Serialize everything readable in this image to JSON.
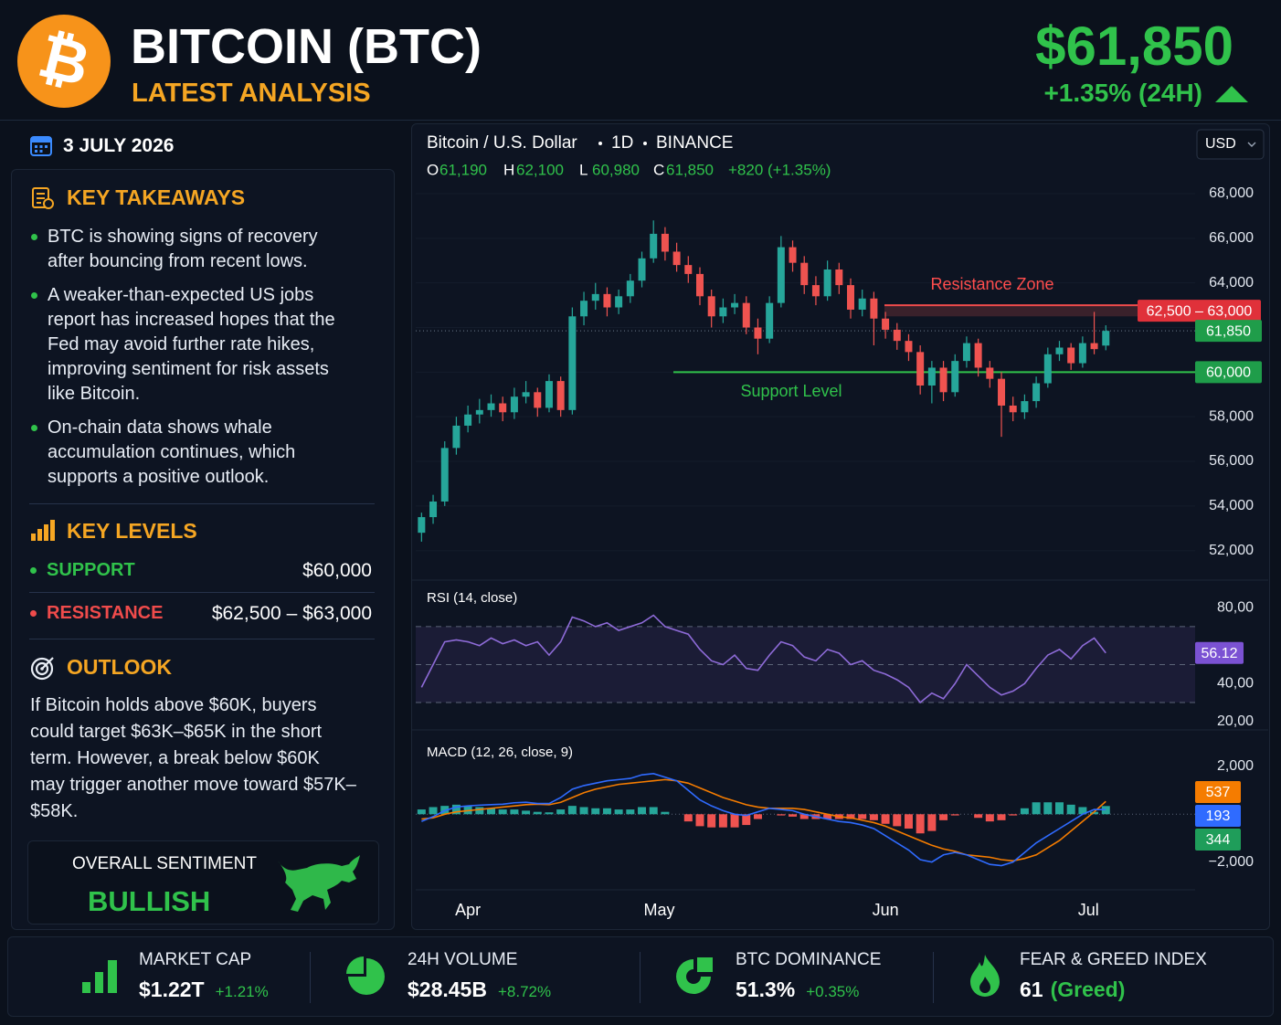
{
  "header": {
    "symbol": "₿",
    "title": "BITCOIN (BTC)",
    "subtitle": "LATEST ANALYSIS",
    "price": "$61,850",
    "change": "+1.35% (24H)"
  },
  "sidebar": {
    "date": "3 JULY 2026",
    "takeaways": {
      "title": "KEY TAKEAWAYS",
      "items": [
        "BTC is showing signs of recovery after bouncing from recent lows.",
        "A weaker-than-expected US jobs report has increased hopes that the Fed may avoid further rate hikes, improving sentiment for risk assets like Bitcoin.",
        "On-chain data shows whale accumulation continues, which supports a positive outlook."
      ]
    },
    "key_levels": {
      "title": "KEY LEVELS",
      "rows": [
        {
          "label": "SUPPORT",
          "value": "$60,000"
        },
        {
          "label": "RESISTANCE",
          "value": "$62,500 – $63,000"
        }
      ]
    },
    "outlook": {
      "title": "OUTLOOK",
      "text": "If Bitcoin holds above $60K, buyers could target $63K–$65K in the short term. However, a break below $60K may trigger another move toward $57K–$58K."
    },
    "sentiment": {
      "label": "OVERALL SENTIMENT",
      "value": "BULLISH"
    }
  },
  "chart_data": [
    {
      "type": "candlestick",
      "title": "Bitcoin / U.S. Dollar",
      "interval": "1D",
      "exchange": "BINANCE",
      "currency": "USD",
      "ohlc_legend": [
        {
          "key": "O",
          "value": "61,190"
        },
        {
          "key": "H",
          "value": "62,100"
        },
        {
          "key": "L",
          "value": "60,980"
        },
        {
          "key": "C",
          "value": "61,850"
        }
      ],
      "change": "+820 (+1.35%)",
      "open": [
        52800,
        53500,
        54200,
        56600,
        57600,
        58100,
        58300,
        58600,
        58200,
        58900,
        59100,
        58400,
        59600,
        58300,
        62500,
        63200,
        63500,
        62900,
        63400,
        64100,
        65100,
        66200,
        65400,
        64800,
        64400,
        63400,
        62500,
        62900,
        63100,
        62000,
        61500,
        63100,
        65600,
        64900,
        63900,
        63400,
        64600,
        63900,
        62800,
        63300,
        62400,
        61900,
        61400,
        60900,
        59400,
        60200,
        59100,
        60500,
        61300,
        60200,
        59700,
        58500,
        58200,
        58700,
        59500,
        60800,
        61100,
        60400,
        61300,
        61190
      ],
      "high": [
        53700,
        54500,
        56900,
        58000,
        58500,
        58800,
        59000,
        58900,
        59300,
        59600,
        59300,
        59900,
        59800,
        62900,
        63600,
        64000,
        63800,
        63700,
        64400,
        65400,
        66800,
        66500,
        65800,
        65200,
        64700,
        63700,
        63300,
        63500,
        63400,
        62400,
        63400,
        66100,
        65900,
        65200,
        64300,
        65000,
        64900,
        64200,
        63700,
        63600,
        62700,
        62200,
        61700,
        61200,
        60500,
        60500,
        60800,
        61600,
        61500,
        60500,
        60000,
        58900,
        59000,
        59800,
        61100,
        61400,
        61300,
        61600,
        62700,
        62100
      ],
      "low": [
        52400,
        53200,
        54000,
        56300,
        57300,
        57700,
        58000,
        57800,
        57900,
        58600,
        58000,
        58200,
        58000,
        58100,
        62100,
        62800,
        62500,
        62600,
        63100,
        63800,
        64900,
        65000,
        64500,
        64000,
        63000,
        62000,
        62200,
        62600,
        61700,
        60800,
        61300,
        62900,
        64500,
        63500,
        63000,
        63200,
        63500,
        62400,
        62500,
        61200,
        61500,
        61000,
        60500,
        59000,
        58600,
        58700,
        58900,
        60200,
        59800,
        59300,
        57100,
        57800,
        57900,
        58400,
        59300,
        60500,
        60100,
        60200,
        60800,
        60980
      ],
      "close": [
        53500,
        54200,
        56600,
        57600,
        58100,
        58300,
        58600,
        58200,
        58900,
        59100,
        58400,
        59600,
        58300,
        62500,
        63200,
        63500,
        62900,
        63400,
        64100,
        65100,
        66200,
        65400,
        64800,
        64400,
        63400,
        62500,
        62900,
        63100,
        62000,
        61500,
        63100,
        65600,
        64900,
        63900,
        63400,
        64600,
        63900,
        62800,
        63300,
        62400,
        61900,
        61400,
        60900,
        59400,
        60200,
        59100,
        60500,
        61300,
        60200,
        59700,
        58500,
        58200,
        58700,
        59500,
        60800,
        61100,
        60400,
        61300,
        61030,
        61850
      ],
      "up_color": "#26a69a",
      "down_color": "#ef5350",
      "xlim": [
        -0.5,
        66.7
      ],
      "xticks": [
        {
          "value": 4,
          "label": "Apr"
        },
        {
          "value": 20.5,
          "label": "May"
        },
        {
          "value": 40,
          "label": "Jun"
        },
        {
          "value": 57.5,
          "label": "Jul"
        }
      ],
      "ylim": [
        50800,
        68900
      ],
      "yticks": [
        {
          "value": 52000,
          "label": "52,000"
        },
        {
          "value": 54000,
          "label": "54,000"
        },
        {
          "value": 56000,
          "label": "56,000"
        },
        {
          "value": 58000,
          "label": "58,000"
        },
        {
          "value": 60000,
          "label": "60,000"
        },
        {
          "value": 62000,
          "label": "62,000"
        },
        {
          "value": 64000,
          "label": "64,000"
        },
        {
          "value": 66000,
          "label": "66,000"
        },
        {
          "value": 68000,
          "label": "68,000"
        }
      ],
      "current_price": {
        "value": 61850,
        "label": "61,850"
      },
      "support": {
        "value": 60000,
        "label": "60,000",
        "text": "Support Level"
      },
      "resistance": {
        "low": 62500,
        "high": 63000,
        "label": "62,500 – 63,000",
        "text": "Resistance Zone"
      }
    },
    {
      "type": "line",
      "title": "RSI (14, close)",
      "color": "#8e6bd8",
      "values": [
        38,
        50,
        62,
        63,
        62,
        60,
        64,
        61,
        63,
        60,
        62,
        55,
        62,
        75,
        73,
        70,
        72,
        68,
        70,
        72,
        76,
        70,
        68,
        66,
        58,
        52,
        50,
        55,
        48,
        47,
        55,
        62,
        60,
        54,
        52,
        58,
        56,
        50,
        52,
        47,
        45,
        42,
        38,
        30,
        35,
        32,
        40,
        50,
        44,
        38,
        34,
        36,
        40,
        48,
        55,
        58,
        53,
        60,
        64,
        56.12
      ],
      "ylim": [
        17.5,
        89.7
      ],
      "yticks": [
        {
          "value": 20,
          "label": "20,00"
        },
        {
          "value": 40,
          "label": "40,00"
        },
        {
          "value": 80,
          "label": "80,00"
        }
      ],
      "bands": [
        30,
        50,
        70
      ]
    },
    {
      "type": "macd",
      "title": "MACD (12, 26, close, 9)",
      "series": [
        {
          "color": "#f57c00",
          "values": [
            -200,
            -150,
            0,
            100,
            150,
            200,
            250,
            300,
            350,
            400,
            420,
            400,
            500,
            700,
            900,
            1050,
            1150,
            1250,
            1300,
            1350,
            1400,
            1450,
            1400,
            1300,
            1100,
            900,
            700,
            550,
            400,
            300,
            250,
            250,
            250,
            200,
            100,
            0,
            -100,
            -150,
            -250,
            -350,
            -500,
            -700,
            -900,
            -1100,
            -1300,
            -1450,
            -1550,
            -1700,
            -1750,
            -1800,
            -1900,
            -1950,
            -1850,
            -1700,
            -1400,
            -1100,
            -700,
            -300,
            100,
            537
          ]
        },
        {
          "color": "#2f6bff",
          "values": [
            -300,
            -100,
            150,
            300,
            350,
            380,
            400,
            420,
            480,
            500,
            450,
            450,
            700,
            1050,
            1200,
            1300,
            1400,
            1450,
            1500,
            1650,
            1700,
            1550,
            1400,
            1000,
            600,
            350,
            150,
            0,
            -50,
            100,
            250,
            200,
            150,
            0,
            -100,
            -200,
            -300,
            -350,
            -450,
            -600,
            -900,
            -1200,
            -1500,
            -1900,
            -2000,
            -1700,
            -1600,
            -1700,
            -1900,
            -2100,
            -2150,
            -2000,
            -1600,
            -1200,
            -900,
            -600,
            -300,
            0,
            200,
            193
          ]
        }
      ],
      "histogram": {
        "color": "#26a69a",
        "down_color": "#ef5350",
        "values": [
          200,
          300,
          350,
          400,
          350,
          300,
          250,
          200,
          200,
          150,
          100,
          80,
          200,
          350,
          300,
          250,
          250,
          200,
          200,
          300,
          300,
          100,
          0,
          -300,
          -500,
          -550,
          -550,
          -550,
          -450,
          -200,
          0,
          -50,
          -100,
          -200,
          -200,
          -200,
          -200,
          -200,
          -200,
          -250,
          -400,
          -500,
          -600,
          -800,
          -700,
          -250,
          -50,
          0,
          -150,
          -300,
          -250,
          -50,
          250,
          500,
          500,
          500,
          400,
          300,
          100,
          344
        ]
      },
      "ylim": [
        -3200,
        3300
      ],
      "yticks": [
        {
          "value": -2000,
          "label": "−2,000"
        },
        {
          "value": 2000,
          "label": "2,000"
        }
      ]
    }
  ],
  "footer": {
    "stats": [
      {
        "label": "MARKET CAP",
        "value": "$1.22T",
        "change": "+1.21%"
      },
      {
        "label": "24H VOLUME",
        "value": "$28.45B",
        "change": "+8.72%"
      },
      {
        "label": "BTC DOMINANCE",
        "value": "51.3%",
        "change": "+0.35%"
      },
      {
        "label": "FEAR & GREED INDEX",
        "value": "61",
        "change": "(Greed)"
      }
    ]
  }
}
